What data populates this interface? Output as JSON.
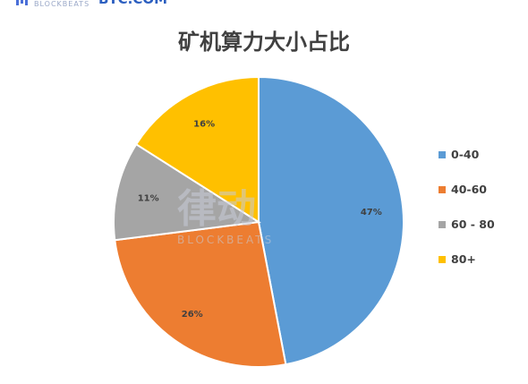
{
  "header": {
    "left_logo": "BLOCKBEATS",
    "right_logo": "BTC.COM"
  },
  "watermark": {
    "main": "律动",
    "sub": "BLOCKBEATS"
  },
  "chart_data": {
    "type": "pie",
    "title": "矿机算力大小占比",
    "legend_position": "right",
    "categories": [
      "0-40",
      "40-60",
      "60 - 80",
      "80+"
    ],
    "values": [
      47,
      26,
      11,
      16
    ],
    "labels": [
      "47%",
      "26%",
      "11%",
      "16%"
    ],
    "colors": [
      "#5b9bd5",
      "#ed7d31",
      "#a5a5a5",
      "#ffc000"
    ]
  }
}
